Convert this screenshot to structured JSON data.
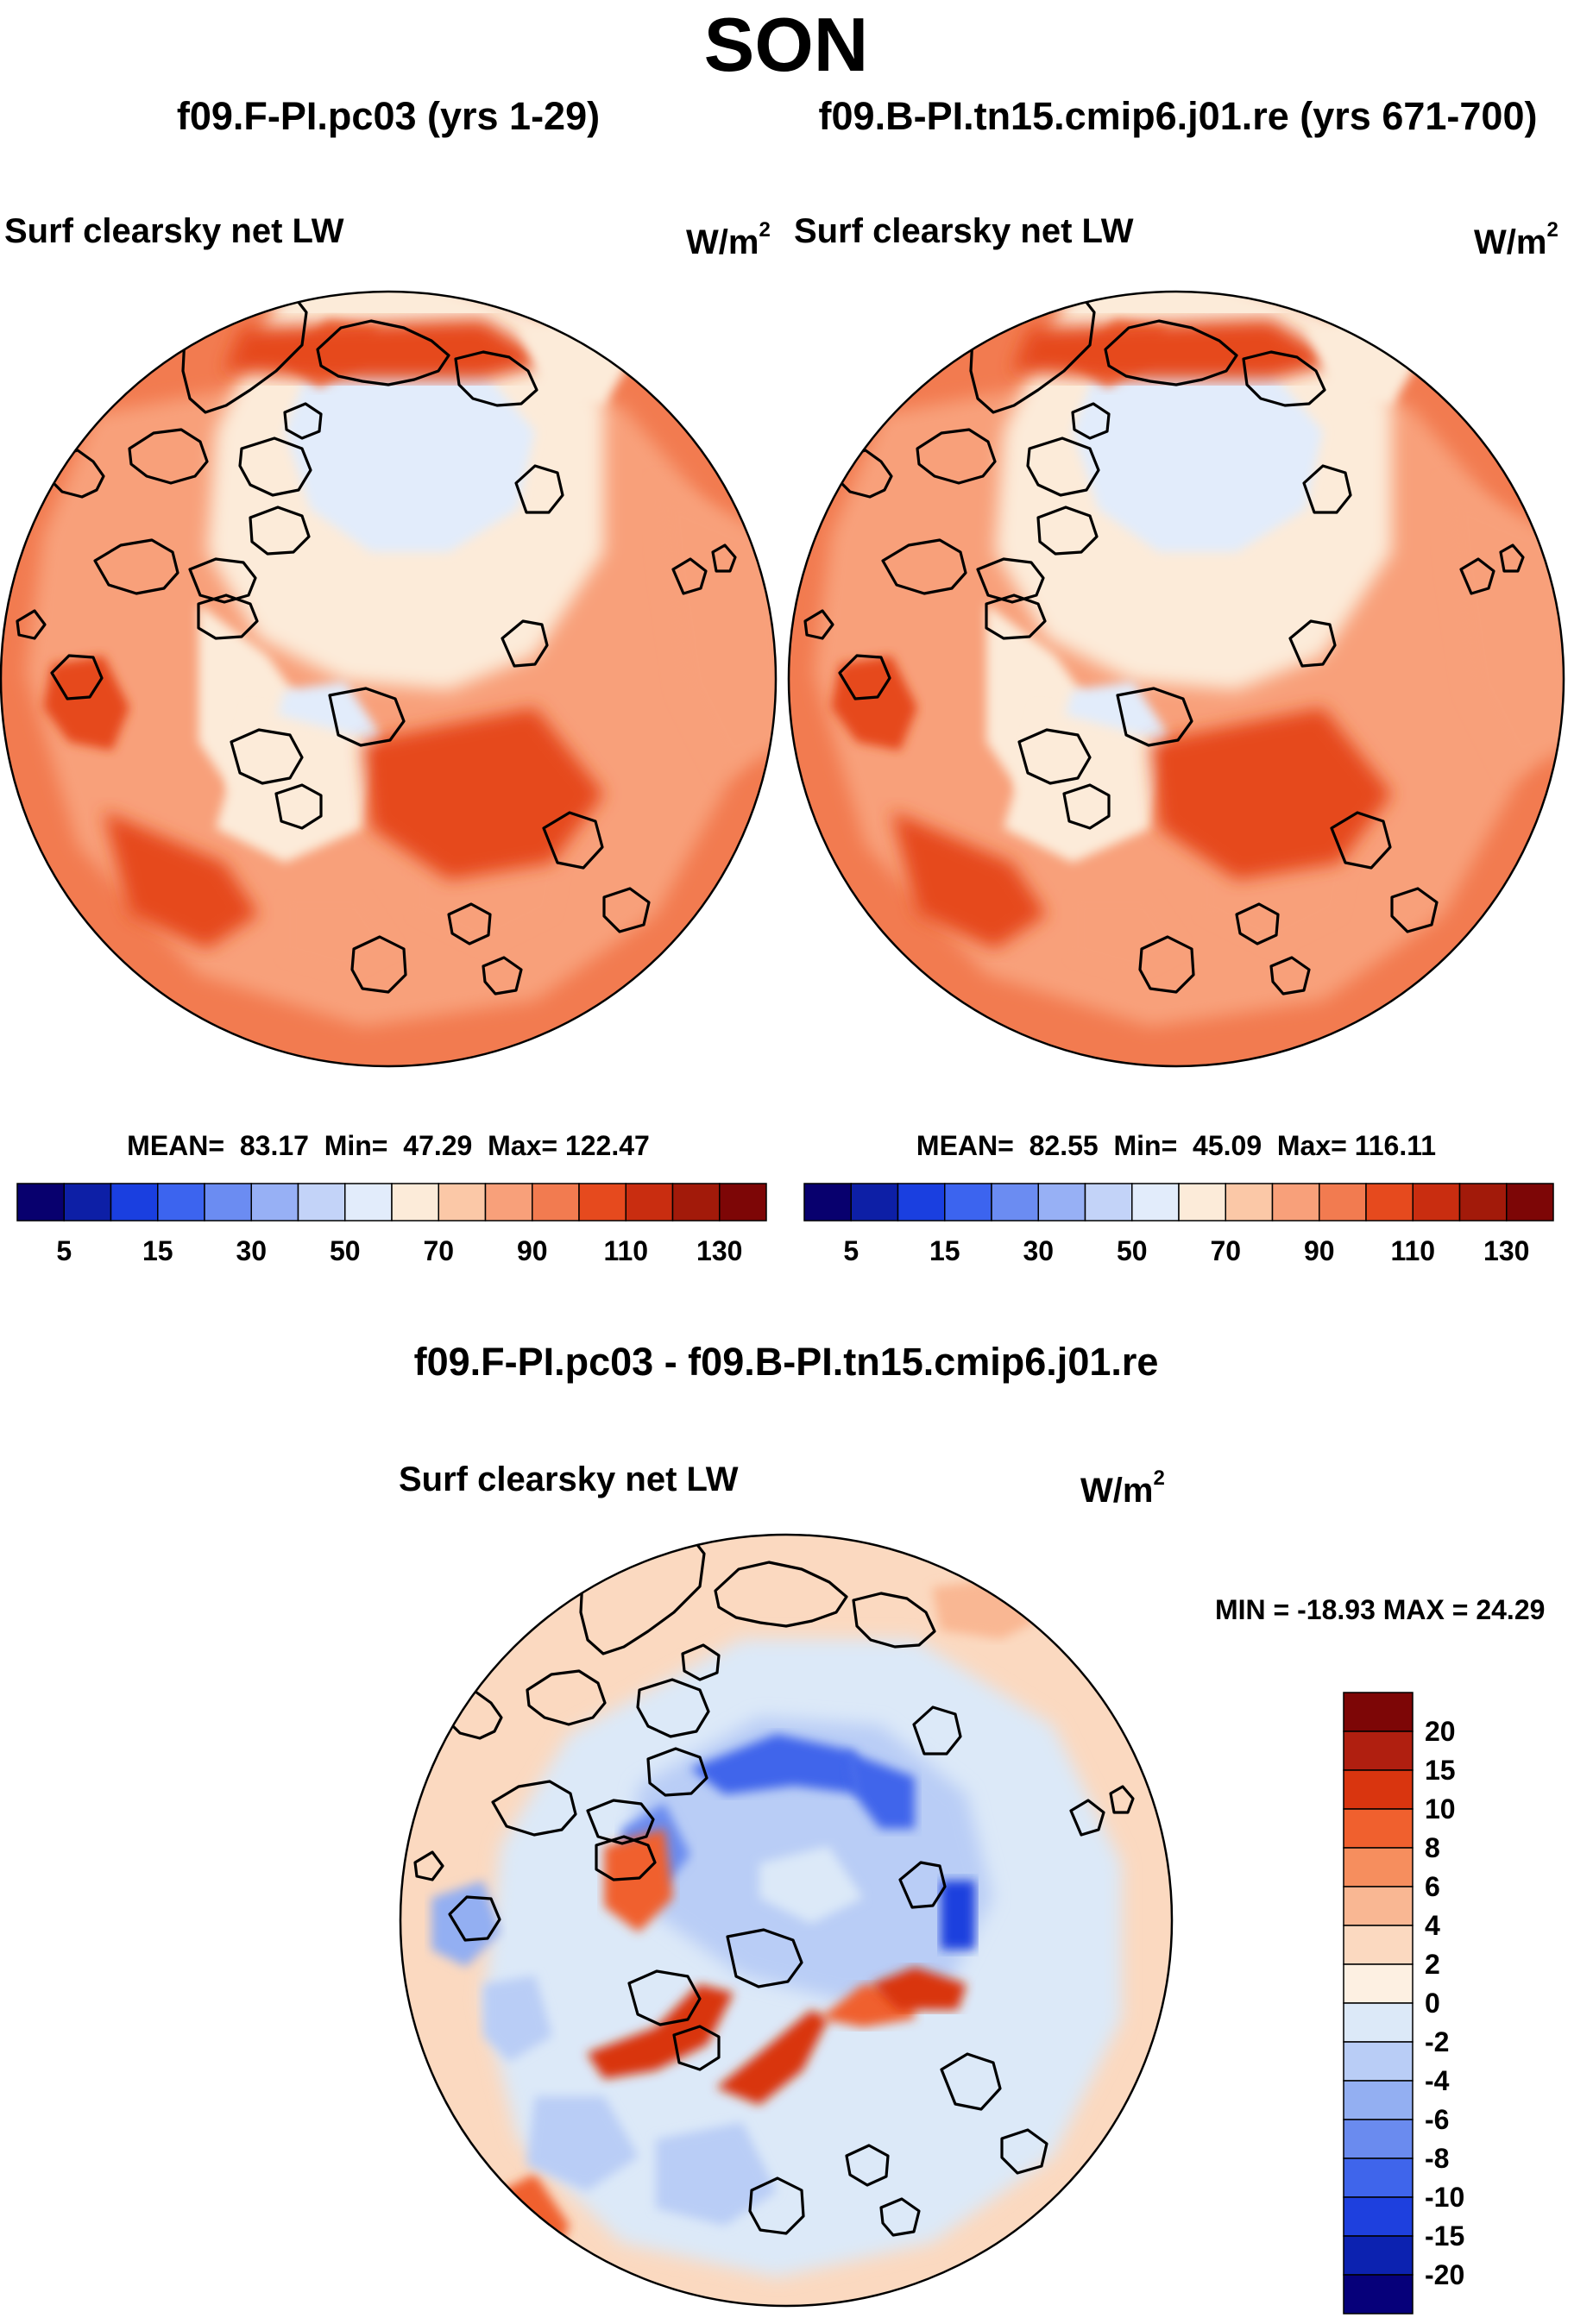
{
  "title": "SON",
  "panels": [
    {
      "case": "f09.F-PI.pc03 (yrs 1-29)",
      "variable": "Surf clearsky net LW",
      "unit": "W/m",
      "unit_exp": "2",
      "mean_label": "MEAN=",
      "mean": "83.17",
      "min_label": "Min=",
      "min": "47.29",
      "max_label": "Max=",
      "max": "122.47"
    },
    {
      "case": "f09.B-PI.tn15.cmip6.j01.re (yrs 671-700)",
      "variable": "Surf clearsky net LW",
      "unit": "W/m",
      "unit_exp": "2",
      "mean_label": "MEAN=",
      "mean": "82.55",
      "min_label": "Min=",
      "min": "45.09",
      "max_label": "Max=",
      "max": "116.11"
    }
  ],
  "abs_colorbar": {
    "colors": [
      "#08006e",
      "#0d1fa6",
      "#1a3fe0",
      "#3c64ef",
      "#6b8cf2",
      "#97b0f5",
      "#c3d3f8",
      "#e2ecfb",
      "#fcebd9",
      "#fbc8a7",
      "#f8a07a",
      "#f27b50",
      "#e64a1e",
      "#c92d10",
      "#a21a0a",
      "#7d0606"
    ],
    "tick_labels": [
      "5",
      "15",
      "30",
      "50",
      "70",
      "90",
      "110",
      "130"
    ]
  },
  "diff_panel": {
    "title": "f09.F-PI.pc03 - f09.B-PI.tn15.cmip6.j01.re",
    "variable": "Surf clearsky net LW",
    "unit": "W/m",
    "unit_exp": "2",
    "minmax_text": "MIN = -18.93  MAX =  24.29"
  },
  "diff_colorbar": {
    "colors": [
      "#7d0606",
      "#b01f10",
      "#d9350f",
      "#f0602e",
      "#f68e5e",
      "#f9b793",
      "#fbd9c0",
      "#fdf0e2",
      "#dce9f8",
      "#b9cdf6",
      "#93aff2",
      "#6a8bef",
      "#3f65eb",
      "#1e40de",
      "#0c22b0",
      "#06007a"
    ],
    "tick_labels": [
      "20",
      "15",
      "10",
      "8",
      "6",
      "4",
      "2",
      "0",
      "-2",
      "-4",
      "-6",
      "-8",
      "-10",
      "-15",
      "-20"
    ]
  }
}
